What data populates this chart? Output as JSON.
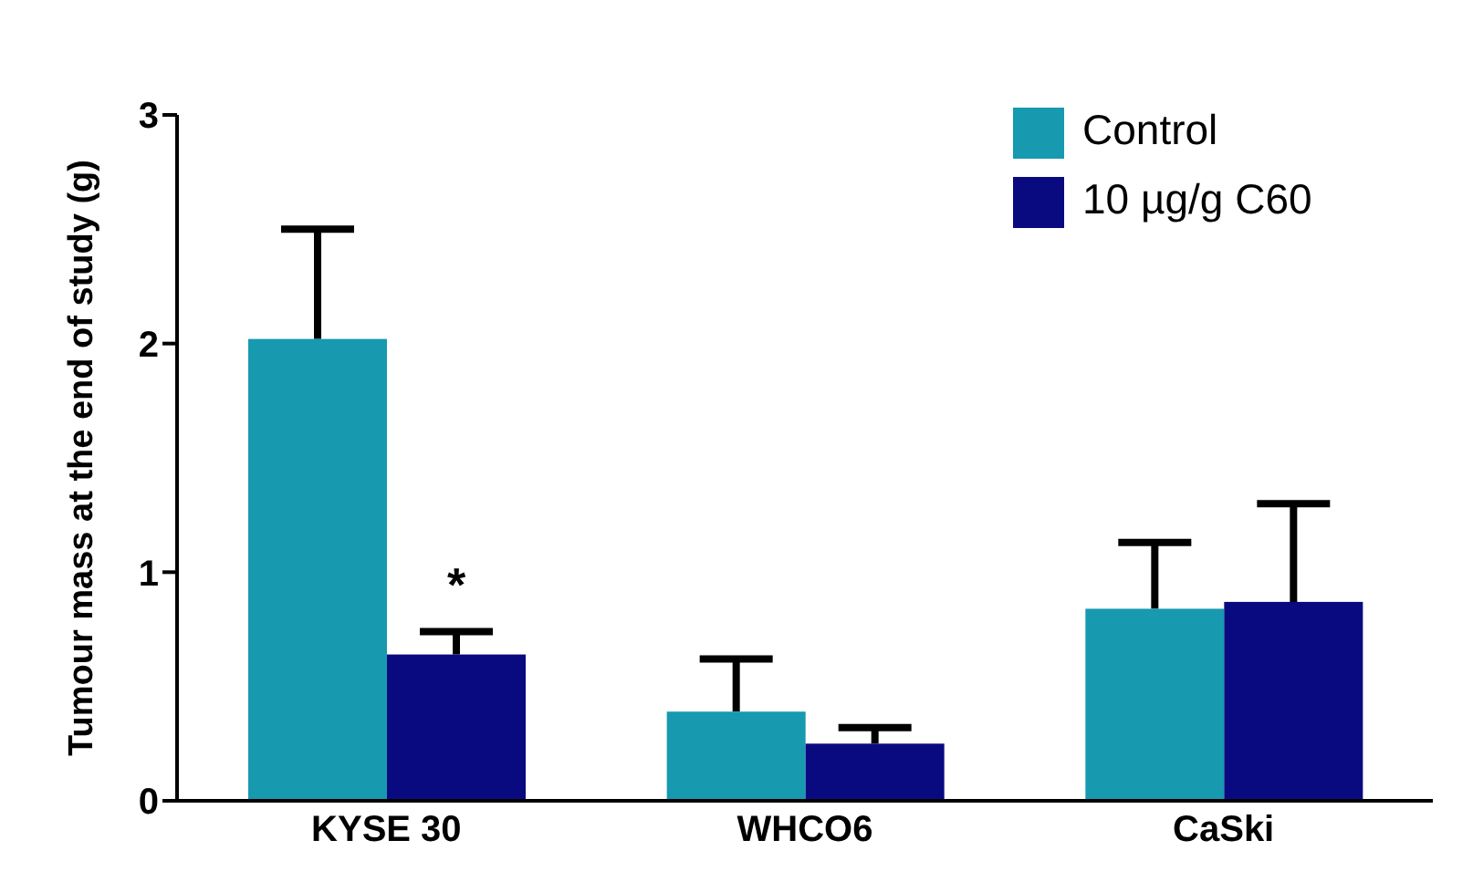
{
  "chart_data": {
    "type": "bar",
    "ylabel": "Tumour mass at the end of study (g)",
    "categories": [
      "KYSE 30",
      "WHCO6",
      "CaSki"
    ],
    "series": [
      {
        "name": "Control",
        "color": "#1799b0",
        "values": [
          2.02,
          0.39,
          0.84
        ],
        "errors": [
          [
            2.02,
            2.5
          ],
          [
            0.39,
            0.62
          ],
          [
            0.84,
            1.13
          ]
        ]
      },
      {
        "name": "10 µg/g C60",
        "color": "#0a0a80",
        "values": [
          0.64,
          0.25,
          0.87
        ],
        "errors": [
          [
            0.64,
            0.74
          ],
          [
            0.25,
            0.32
          ],
          [
            0.87,
            1.3
          ]
        ]
      }
    ],
    "ylim": [
      0,
      3
    ],
    "yticks": [
      0,
      1,
      2,
      3
    ],
    "grid": false,
    "legend": "top right",
    "annotations": [
      {
        "text": "*",
        "x": "KYSE 30",
        "y": 0.93
      }
    ]
  }
}
